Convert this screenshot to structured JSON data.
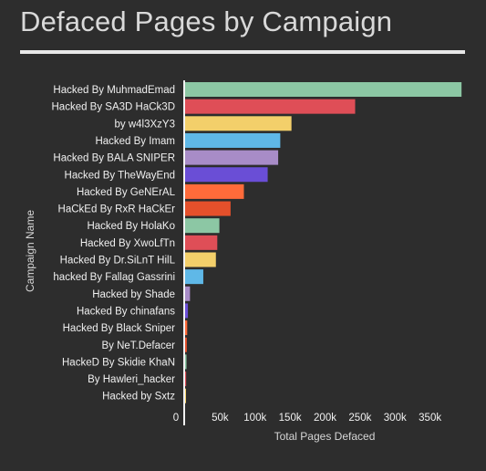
{
  "title": "Defaced Pages by Campaign",
  "chart_data": {
    "type": "bar",
    "orientation": "horizontal",
    "xlabel": "Total Pages Defaced",
    "ylabel": "Campaign Name",
    "xlim": [
      0,
      400000
    ],
    "xticks": [
      0,
      50000,
      100000,
      150000,
      200000,
      250000,
      300000,
      350000
    ],
    "xtick_labels": [
      "0",
      "50k",
      "100k",
      "150k",
      "200k",
      "250k",
      "300k",
      "350k"
    ],
    "grid": false,
    "categories": [
      "Hacked By MuhmadEmad",
      "Hacked By SA3D HaCk3D",
      "by w4l3XzY3",
      "Hacked By Imam",
      "Hacked By BALA SNIPER",
      "Hacked By TheWayEnd",
      "Hacked By GeNErAL",
      "HaCkEd By RxR HaCkEr",
      "Hacked By HolaKo",
      "Hacked By XwoLfTn",
      "Hacked By Dr.SiLnT HilL",
      "hacked By Fallag Gassrini",
      "Hacked by Shade",
      "Hacked By chinafans",
      "Hacked By Black Sniper",
      "By NeT.Defacer",
      "HackeD By Skidie KhaN",
      "By Hawleri_hacker",
      "Hacked by Sxtz"
    ],
    "values": [
      395000,
      243000,
      152000,
      136000,
      133000,
      118000,
      84000,
      65000,
      49000,
      46000,
      44000,
      26000,
      7000,
      4000,
      3000,
      2500,
      2000,
      1500,
      1200
    ],
    "colors": [
      "#8cc7a4",
      "#df4e57",
      "#f3cf6a",
      "#5fb8e7",
      "#a88cc7",
      "#6a4ed6",
      "#ff6b3a",
      "#e5502b",
      "#8cc7a4",
      "#df4e57",
      "#f3cf6a",
      "#5fb8e7",
      "#a88cc7",
      "#6a4ed6",
      "#ff6b3a",
      "#e5502b",
      "#8cc7a4",
      "#df4e57",
      "#f3cf6a"
    ]
  }
}
